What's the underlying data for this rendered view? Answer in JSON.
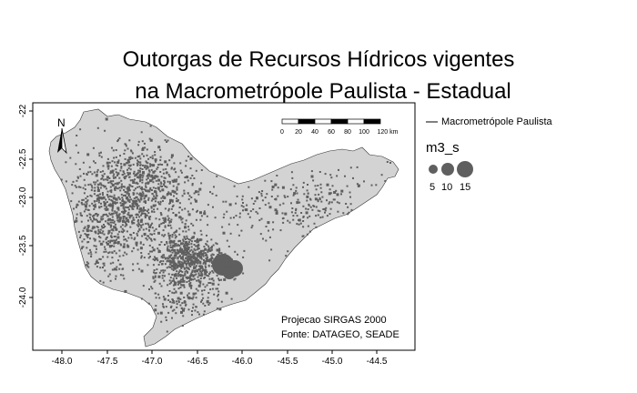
{
  "title_line1": "Outorgas de Recursos Hídricos vigentes",
  "title_line2": "na Macrometrópole Paulista - Estadual",
  "map": {
    "x_ticks": [
      "-48.0",
      "-47.5",
      "-47.0",
      "-46.5",
      "-46.0",
      "-45.5",
      "-45.0",
      "-44.5"
    ],
    "y_ticks": [
      "-22",
      "-22.5",
      "-23.0",
      "-23.5",
      "-24.0"
    ],
    "north_label": "N",
    "scale_labels": [
      "0",
      "20",
      "40",
      "60",
      "80",
      "100",
      "120 km"
    ],
    "region_fill": "#d3d3d3",
    "point_color": "#5f5f5f"
  },
  "legend": {
    "line_label": "Macrometrópole Paulista",
    "size_title": "m3_s",
    "sizes": [
      "5",
      "10",
      "15"
    ]
  },
  "credits": {
    "line1": "Projecao SIRGAS 2000",
    "line2": "Fonte: DATAGEO, SEADE"
  }
}
